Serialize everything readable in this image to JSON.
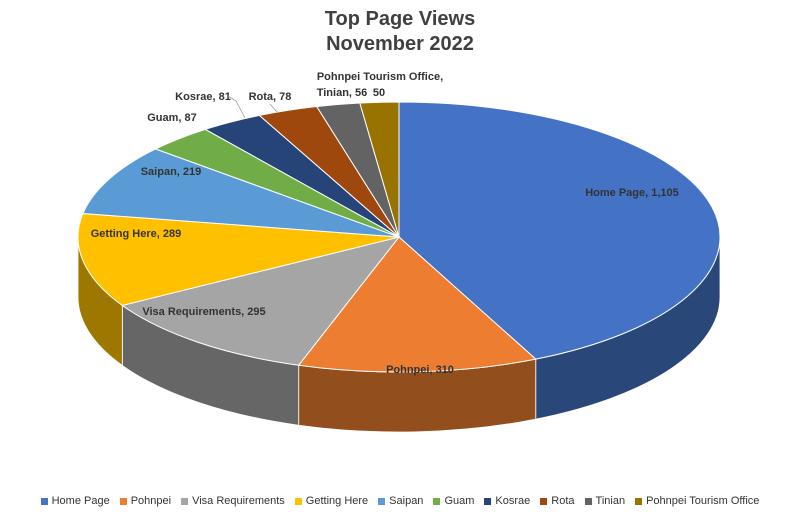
{
  "chart_data": {
    "type": "pie",
    "title": [
      "Top Page Views",
      "November 2022"
    ],
    "categories": [
      "Home Page",
      "Pohnpei",
      "Visa Requirements",
      "Getting Here",
      "Saipan",
      "Guam",
      "Kosrae",
      "Rota",
      "Tinian",
      "Pohnpei Tourism Office"
    ],
    "values": [
      1105,
      310,
      295,
      289,
      219,
      87,
      81,
      78,
      56,
      50
    ],
    "colors": [
      "#4472C4",
      "#ED7D31",
      "#A5A5A5",
      "#FFC000",
      "#5B9BD5",
      "#70AD47",
      "#264478",
      "#9E480E",
      "#636363",
      "#997300"
    ],
    "data_labels": [
      "Home Page, 1,105",
      "Pohnpei, 310",
      "Visa Requirements, 295",
      "Getting Here, 289",
      "Saipan, 219",
      "Guam, 87",
      "Kosrae, 81",
      "Rota, 78",
      "Tinian, 56",
      "50"
    ],
    "extra_labels": [
      "Pohnpei Tourism Office,"
    ],
    "legend_position": "bottom"
  }
}
